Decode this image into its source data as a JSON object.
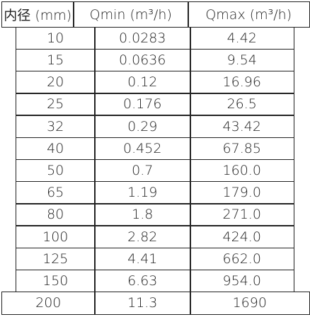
{
  "table": {
    "header": [
      "内径 (mm)",
      "Qmin (m³/h)",
      "Qmax (m³/h)"
    ],
    "rows": [
      [
        "10",
        "0.0283",
        "4.42"
      ],
      [
        "15",
        "0.0636",
        "9.54"
      ],
      [
        "20",
        "0.12",
        "16.96"
      ],
      [
        "25",
        "0.176",
        "26.5"
      ],
      [
        "32",
        "0.29",
        "43.42"
      ],
      [
        "40",
        "0.452",
        "67.85"
      ],
      [
        "50",
        "0.7",
        "160.0"
      ],
      [
        "65",
        "1.19",
        "179.0"
      ],
      [
        "80",
        "1.8",
        "271.0"
      ],
      [
        "100",
        "2.82",
        "424.0"
      ],
      [
        "125",
        "4.41",
        "662.0"
      ],
      [
        "150",
        "6.63",
        "954.0"
      ],
      [
        "200",
        "11.3",
        "1690"
      ]
    ]
  }
}
